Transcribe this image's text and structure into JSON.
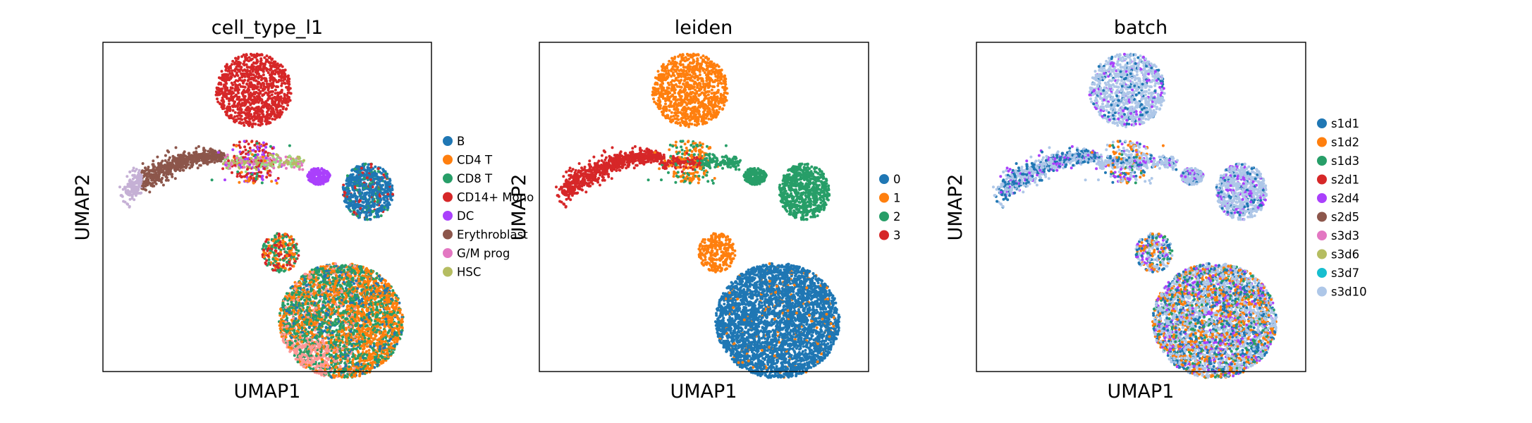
{
  "chart_data": [
    {
      "type": "scatter",
      "title": "cell_type_l1",
      "xlabel": "UMAP1",
      "ylabel": "UMAP2",
      "grid": false,
      "ticks": "none",
      "legend_position": "right",
      "legend_entries": [
        {
          "label": "B",
          "color": "#1f77b4"
        },
        {
          "label": "CD4 T",
          "color": "#ff7f0e"
        },
        {
          "label": "CD8 T",
          "color": "#279e68"
        },
        {
          "label": "CD14+ Mono",
          "color": "#d62728"
        },
        {
          "label": "DC",
          "color": "#aa40fc"
        },
        {
          "label": "Erythroblast",
          "color": "#8c564b"
        },
        {
          "label": "G/M prog",
          "color": "#e377c2"
        },
        {
          "label": "HSC",
          "color": "#b5bd61"
        }
      ]
    },
    {
      "type": "scatter",
      "title": "leiden",
      "xlabel": "UMAP1",
      "ylabel": "UMAP2",
      "grid": false,
      "ticks": "none",
      "legend_position": "right",
      "legend_entries": [
        {
          "label": "0",
          "color": "#1f77b4"
        },
        {
          "label": "1",
          "color": "#ff7f0e"
        },
        {
          "label": "2",
          "color": "#279e68"
        },
        {
          "label": "3",
          "color": "#d62728"
        }
      ]
    },
    {
      "type": "scatter",
      "title": "batch",
      "xlabel": "UMAP1",
      "ylabel": "UMAP2",
      "grid": false,
      "ticks": "none",
      "legend_position": "right",
      "legend_entries": [
        {
          "label": "s1d1",
          "color": "#1f77b4"
        },
        {
          "label": "s1d2",
          "color": "#ff7f0e"
        },
        {
          "label": "s1d3",
          "color": "#279e68"
        },
        {
          "label": "s2d1",
          "color": "#d62728"
        },
        {
          "label": "s2d4",
          "color": "#aa40fc"
        },
        {
          "label": "s2d5",
          "color": "#8c564b"
        },
        {
          "label": "s3d3",
          "color": "#e377c2"
        },
        {
          "label": "s3d6",
          "color": "#b5bd61"
        },
        {
          "label": "s3d7",
          "color": "#17becf"
        },
        {
          "label": "s3d10",
          "color": "#aec7e8"
        }
      ]
    }
  ]
}
